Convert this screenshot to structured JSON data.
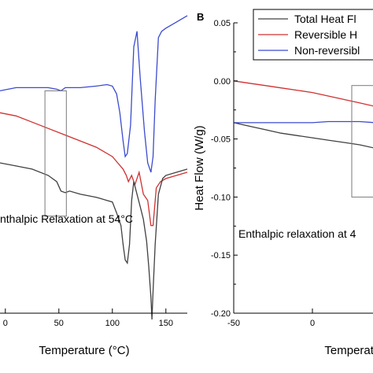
{
  "chart_data": [
    {
      "type": "line",
      "panel": "",
      "xlabel": "Temperature (°C)",
      "ylabel": "",
      "xlim": [
        -5,
        170
      ],
      "ylim": [
        0,
        100
      ],
      "x_ticks": [
        {
          "value": 0,
          "label": "0"
        },
        {
          "value": 50,
          "label": "50"
        },
        {
          "value": 100,
          "label": "100"
        },
        {
          "value": 150,
          "label": "150"
        }
      ],
      "annotation": "nthalpic Relaxation at 54°C",
      "highlight_box": {
        "x": [
          37,
          57
        ],
        "y": [
          31,
          71
        ]
      },
      "series": [
        {
          "color": "#3b4bd0",
          "x": [
            -5,
            10,
            25,
            40,
            48,
            52,
            56,
            60,
            70,
            85,
            95,
            100,
            104,
            107,
            110,
            112,
            114,
            117,
            120,
            123,
            126,
            130,
            133,
            136,
            138,
            140,
            143,
            146,
            150,
            160,
            170
          ],
          "y": [
            71,
            72,
            72,
            72,
            71.5,
            71,
            72,
            72,
            72,
            72.5,
            73,
            72.5,
            70,
            64,
            55,
            50,
            51,
            60,
            85,
            90,
            75,
            58,
            48,
            45,
            50,
            68,
            88,
            90,
            91,
            93,
            95
          ]
        },
        {
          "color": "#d03030",
          "x": [
            -5,
            10,
            25,
            40,
            55,
            70,
            85,
            100,
            105,
            110,
            113,
            115,
            118,
            121,
            125,
            129,
            133,
            136,
            138,
            141,
            145,
            150,
            160,
            170
          ],
          "y": [
            64,
            63,
            61,
            59,
            57,
            55,
            53,
            50,
            48,
            46,
            44,
            42,
            44,
            41,
            45,
            38,
            36,
            28,
            28,
            40,
            42,
            43,
            44,
            45
          ]
        },
        {
          "color": "#404040",
          "x": [
            -5,
            10,
            25,
            40,
            48,
            52,
            56,
            60,
            70,
            85,
            95,
            100,
            104,
            108,
            110,
            112,
            114,
            116,
            118,
            120,
            123,
            126,
            129,
            132,
            134,
            136,
            137,
            138,
            140,
            143,
            147,
            150,
            160,
            170
          ],
          "y": [
            48,
            47,
            46,
            44,
            42,
            39,
            38.5,
            39,
            38,
            37,
            36,
            35.5,
            32,
            28,
            22,
            17,
            16,
            22,
            36,
            42,
            38,
            34,
            30,
            23,
            15,
            5,
            -2,
            7,
            22,
            38,
            43,
            44,
            45,
            46
          ]
        }
      ]
    },
    {
      "type": "line",
      "panel": "B",
      "xlabel": "Temperature (°C)",
      "ylabel": "Heat Flow (W/g)",
      "xlim": [
        -50,
        70
      ],
      "ylim": [
        -0.2,
        0.05
      ],
      "x_ticks": [
        {
          "value": -50,
          "label": "-50"
        },
        {
          "value": 0,
          "label": "0"
        },
        {
          "value": 50,
          "label": "50"
        }
      ],
      "y_ticks": [
        {
          "value": 0.05,
          "label": "0.05"
        },
        {
          "value": 0.0,
          "label": "0.00"
        },
        {
          "value": -0.05,
          "label": "-0.05"
        },
        {
          "value": -0.1,
          "label": "-0.10"
        },
        {
          "value": -0.15,
          "label": "-0.15"
        },
        {
          "value": -0.2,
          "label": "-0.20"
        }
      ],
      "annotation": "Enthalpic relaxation at 4",
      "highlight_box": {
        "x": [
          25,
          56
        ],
        "y": [
          -0.1,
          -0.004
        ]
      },
      "legend": {
        "placement": "top-right",
        "entries": [
          "Total Heat Fl",
          "Reversible H",
          "Non-reversibl"
        ]
      },
      "series": [
        {
          "name": "Total Heat Fl",
          "color": "#404040",
          "x": [
            -50,
            -40,
            -30,
            -20,
            -10,
            0,
            10,
            20,
            30,
            40,
            44,
            48,
            52,
            56,
            60,
            70
          ],
          "y": [
            -0.036,
            -0.039,
            -0.042,
            -0.045,
            -0.047,
            -0.049,
            -0.051,
            -0.053,
            -0.055,
            -0.058,
            -0.06,
            -0.062,
            -0.06,
            -0.059,
            -0.06,
            -0.061
          ]
        },
        {
          "name": "Reversible H",
          "color": "#d03030",
          "x": [
            -50,
            -40,
            -30,
            -20,
            -10,
            0,
            10,
            20,
            30,
            40,
            50,
            60,
            70
          ],
          "y": [
            0.0,
            -0.002,
            -0.004,
            -0.006,
            -0.008,
            -0.01,
            -0.013,
            -0.016,
            -0.019,
            -0.022,
            -0.026,
            -0.029,
            -0.031
          ]
        },
        {
          "name": "Non-reversibl",
          "color": "#3b4bd0",
          "x": [
            -50,
            -40,
            -30,
            -20,
            -10,
            0,
            10,
            20,
            30,
            40,
            44,
            48,
            52,
            56,
            60,
            70
          ],
          "y": [
            -0.036,
            -0.036,
            -0.036,
            -0.036,
            -0.036,
            -0.036,
            -0.035,
            -0.035,
            -0.035,
            -0.036,
            -0.037,
            -0.039,
            -0.036,
            -0.033,
            -0.031,
            -0.03
          ]
        }
      ]
    }
  ]
}
